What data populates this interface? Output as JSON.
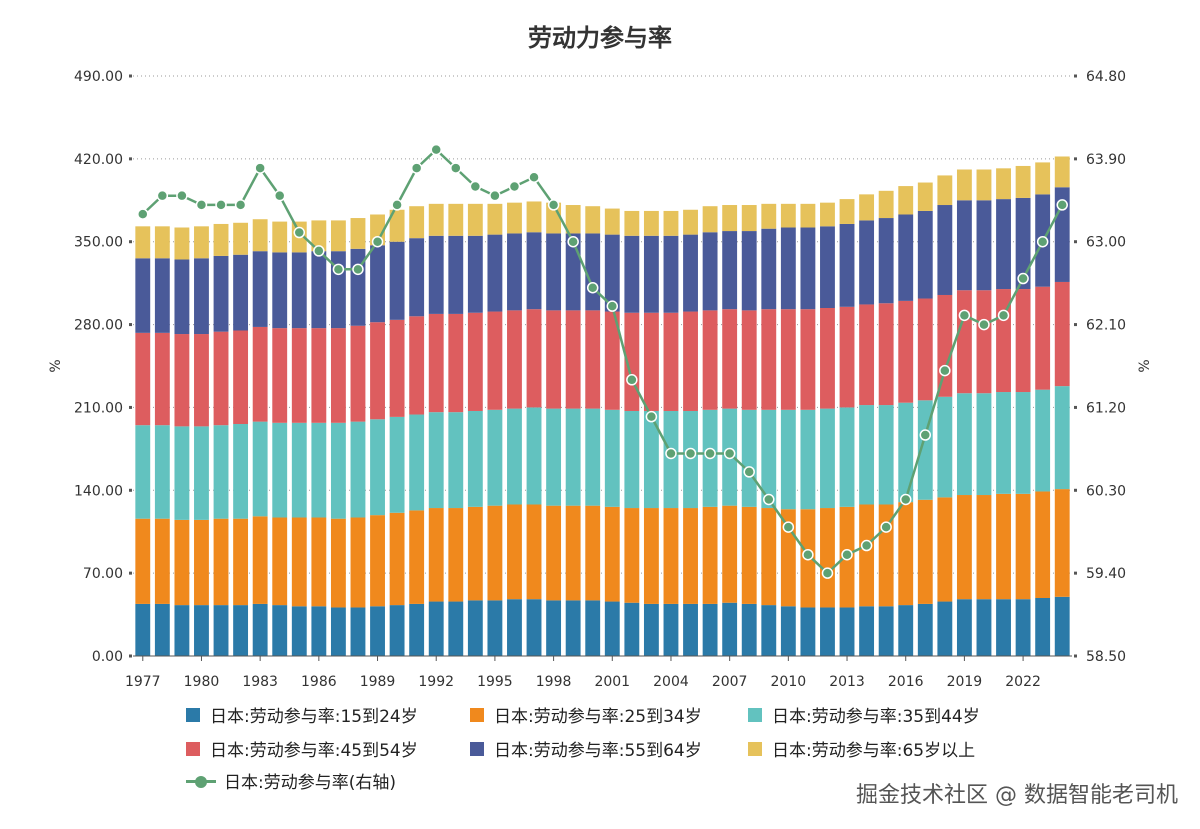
{
  "chart_data": {
    "type": "bar",
    "title": "劳动力参与率",
    "ylabel": "%",
    "y2label": "%",
    "ylim": [
      0,
      490
    ],
    "y2lim": [
      58.5,
      64.8
    ],
    "yticks": [
      "0.00",
      "70.00",
      "140.00",
      "210.00",
      "280.00",
      "350.00",
      "420.00",
      "490.00"
    ],
    "y2ticks": [
      "58.50",
      "59.40",
      "60.30",
      "61.20",
      "62.10",
      "63.00",
      "63.90",
      "64.80"
    ],
    "xticks": [
      "1977",
      "1980",
      "1983",
      "1986",
      "1989",
      "1992",
      "1995",
      "1998",
      "2001",
      "2004",
      "2007",
      "2010",
      "2013",
      "2016",
      "2019",
      "2022"
    ],
    "categories": [
      "1977",
      "1978",
      "1979",
      "1980",
      "1981",
      "1982",
      "1983",
      "1984",
      "1985",
      "1986",
      "1987",
      "1988",
      "1989",
      "1990",
      "1991",
      "1992",
      "1993",
      "1994",
      "1995",
      "1996",
      "1997",
      "1998",
      "1999",
      "2000",
      "2001",
      "2002",
      "2003",
      "2004",
      "2005",
      "2006",
      "2007",
      "2008",
      "2009",
      "2010",
      "2011",
      "2012",
      "2013",
      "2014",
      "2015",
      "2016",
      "2017",
      "2018",
      "2019",
      "2020",
      "2021",
      "2022",
      "2023",
      "2024"
    ],
    "series": [
      {
        "name": "日本:劳动参与率:15到24岁",
        "color": "#2b7aa8",
        "values": [
          44,
          44,
          43,
          43,
          43,
          43,
          44,
          43,
          42,
          42,
          41,
          41,
          42,
          43,
          44,
          46,
          46,
          47,
          47,
          48,
          48,
          47,
          47,
          47,
          46,
          45,
          44,
          44,
          44,
          44,
          45,
          44,
          43,
          42,
          41,
          41,
          41,
          42,
          42,
          43,
          44,
          46,
          48,
          48,
          48,
          48,
          49,
          50
        ]
      },
      {
        "name": "日本:劳动参与率:25到34岁",
        "color": "#f0891d",
        "values": [
          72,
          72,
          72,
          72,
          73,
          73,
          74,
          74,
          75,
          75,
          75,
          76,
          77,
          78,
          79,
          79,
          79,
          79,
          80,
          80,
          80,
          80,
          80,
          80,
          80,
          80,
          81,
          81,
          81,
          82,
          82,
          82,
          82,
          82,
          83,
          84,
          85,
          86,
          86,
          87,
          88,
          88,
          88,
          88,
          89,
          89,
          90,
          91
        ]
      },
      {
        "name": "日本:劳动参与率:35到44岁",
        "color": "#62c2bf",
        "values": [
          79,
          79,
          79,
          79,
          79,
          80,
          80,
          80,
          80,
          80,
          81,
          81,
          81,
          81,
          81,
          81,
          81,
          81,
          81,
          81,
          82,
          82,
          82,
          82,
          82,
          82,
          82,
          82,
          82,
          82,
          82,
          82,
          83,
          84,
          84,
          84,
          84,
          84,
          84,
          84,
          84,
          85,
          86,
          86,
          86,
          86,
          86,
          87
        ]
      },
      {
        "name": "日本:劳动参与率:45到54岁",
        "color": "#dd5d5f",
        "values": [
          78,
          78,
          78,
          78,
          79,
          79,
          80,
          80,
          80,
          80,
          80,
          81,
          82,
          82,
          83,
          83,
          83,
          83,
          83,
          83,
          83,
          83,
          83,
          83,
          83,
          83,
          83,
          83,
          84,
          84,
          84,
          84,
          85,
          85,
          85,
          85,
          85,
          85,
          86,
          86,
          86,
          86,
          87,
          87,
          87,
          87,
          87,
          88
        ]
      },
      {
        "name": "日本:劳动参与率:55到64岁",
        "color": "#4a5a99",
        "values": [
          63,
          63,
          63,
          64,
          64,
          64,
          64,
          64,
          64,
          65,
          65,
          65,
          65,
          66,
          66,
          66,
          66,
          65,
          65,
          65,
          65,
          65,
          65,
          65,
          65,
          65,
          65,
          65,
          65,
          66,
          66,
          67,
          68,
          69,
          69,
          69,
          70,
          71,
          72,
          73,
          74,
          76,
          76,
          76,
          76,
          77,
          78,
          80
        ]
      },
      {
        "name": "日本:劳动参与率:65岁以上",
        "color": "#e6c25b",
        "values": [
          27,
          27,
          27,
          27,
          27,
          27,
          27,
          26,
          26,
          26,
          26,
          26,
          26,
          27,
          27,
          27,
          27,
          27,
          26,
          26,
          26,
          26,
          24,
          23,
          22,
          21,
          21,
          21,
          21,
          22,
          22,
          22,
          21,
          20,
          20,
          20,
          21,
          22,
          23,
          24,
          24,
          25,
          26,
          26,
          26,
          27,
          27,
          26
        ]
      },
      {
        "name": "日本:劳动参与率(右轴)",
        "color": "#5ea173",
        "axis": "right",
        "type": "line",
        "values": [
          63.3,
          63.5,
          63.5,
          63.4,
          63.4,
          63.4,
          63.8,
          63.5,
          63.1,
          62.9,
          62.7,
          62.7,
          63.0,
          63.4,
          63.8,
          64.0,
          63.8,
          63.6,
          63.5,
          63.6,
          63.7,
          63.4,
          63.0,
          62.5,
          62.3,
          61.5,
          61.1,
          60.7,
          60.7,
          60.7,
          60.7,
          60.5,
          60.2,
          59.9,
          59.6,
          59.4,
          59.6,
          59.7,
          59.9,
          60.2,
          60.9,
          61.6,
          62.2,
          62.1,
          62.2,
          62.6,
          63.0,
          63.4
        ]
      }
    ],
    "legend_position": "bottom"
  },
  "watermark": "掘金技术社区 @ 数据智能老司机"
}
